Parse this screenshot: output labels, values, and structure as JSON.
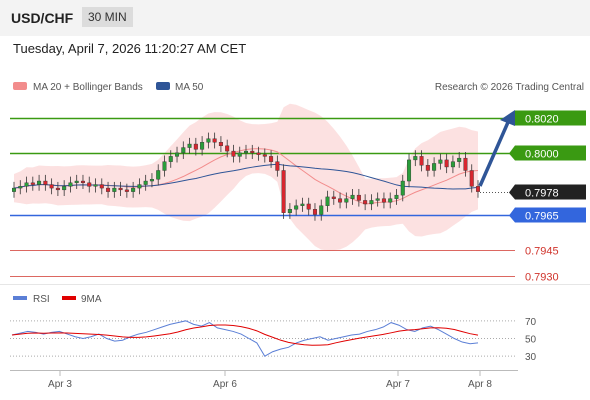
{
  "header": {
    "symbol": "USD/CHF",
    "timeframe": "30 MIN"
  },
  "timestamp": "Tuesday, April 7, 2026 11:20:27 AM CET",
  "legend": {
    "ma20": "MA 20 + Bollinger Bands",
    "ma20_color": "#f28c8c",
    "ma50": "MA 50",
    "ma50_color": "#2f5597",
    "credit": "Research © 2026 Trading Central"
  },
  "rsi_legend": {
    "rsi": "RSI",
    "rsi_color": "#5b7fd6",
    "ma": "9MA",
    "ma_color": "#e00000"
  },
  "chart_data": {
    "type": "candlestick",
    "y_range": [
      0.7925,
      0.803
    ],
    "x_ticks": [
      "Apr 3",
      "Apr 6",
      "Apr 7",
      "Apr 8"
    ],
    "levels": [
      {
        "value": "0.8020",
        "kind": "resistance",
        "color": "#3a9a12"
      },
      {
        "value": "0.8000",
        "kind": "resistance",
        "color": "#3a9a12"
      },
      {
        "value": "0.7978",
        "kind": "current",
        "color": "#222222"
      },
      {
        "value": "0.7965",
        "kind": "pivot",
        "color": "#3366dd"
      },
      {
        "value": "0.7945",
        "kind": "support",
        "color": "#d0342c"
      },
      {
        "value": "0.7930",
        "kind": "support",
        "color": "#d0342c"
      }
    ],
    "closes": [
      0.798,
      0.7981,
      0.7983,
      0.7982,
      0.7984,
      0.7982,
      0.798,
      0.7979,
      0.7981,
      0.7983,
      0.7984,
      0.7983,
      0.7981,
      0.7982,
      0.798,
      0.7978,
      0.798,
      0.7979,
      0.7978,
      0.798,
      0.7982,
      0.7984,
      0.7985,
      0.799,
      0.7995,
      0.7998,
      0.8,
      0.8003,
      0.8005,
      0.8002,
      0.8006,
      0.8008,
      0.8006,
      0.8004,
      0.8001,
      0.7998,
      0.8,
      0.8001,
      0.8,
      0.7999,
      0.7998,
      0.7995,
      0.799,
      0.7966,
      0.7968,
      0.797,
      0.7971,
      0.7968,
      0.7965,
      0.797,
      0.7975,
      0.7974,
      0.7972,
      0.7974,
      0.7976,
      0.7973,
      0.7971,
      0.7973,
      0.7974,
      0.7972,
      0.7974,
      0.7976,
      0.7984,
      0.7996,
      0.7998,
      0.7993,
      0.799,
      0.7994,
      0.7996,
      0.7992,
      0.7995,
      0.7997,
      0.799,
      0.7981,
      0.7978
    ],
    "rsi": {
      "ticks": [
        "70",
        "50",
        "30"
      ],
      "values": [
        54,
        56,
        58,
        57,
        55,
        57,
        58,
        55,
        52,
        50,
        52,
        55,
        50,
        47,
        48,
        52,
        55,
        57,
        60,
        63,
        66,
        68,
        70,
        66,
        64,
        68,
        62,
        60,
        58,
        55,
        50,
        45,
        30,
        35,
        38,
        40,
        45,
        48,
        50,
        52,
        48,
        50,
        52,
        54,
        55,
        58,
        60,
        63,
        68,
        65,
        60,
        58,
        62,
        64,
        60,
        55,
        50,
        46,
        44,
        45
      ]
    }
  }
}
